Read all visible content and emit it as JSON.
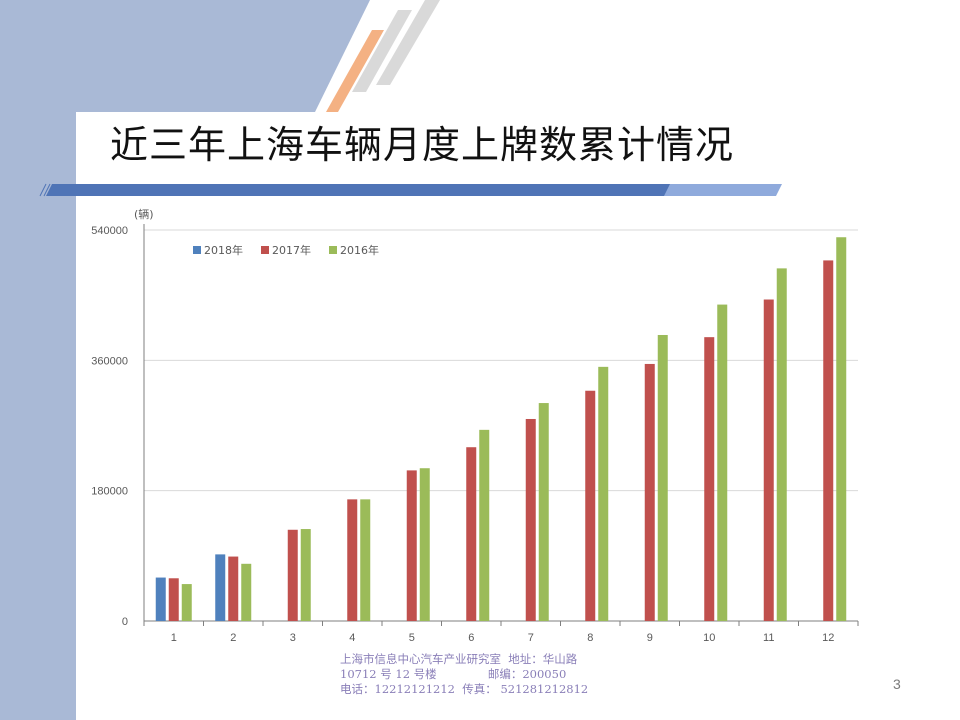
{
  "slide": {
    "title": "近三年上海车辆月度上牌数累计情况",
    "page_number": "3",
    "footer_lines": [
      "上海市信息中心汽车产业研究室  地址：华山路",
      "10712 号 12 号楼              邮编：200050",
      "电话：12212121212  传真： 521281212812"
    ]
  },
  "colors": {
    "band": "#a9b9d6",
    "accent_orange": "#f4b183",
    "stripe_gray": "#d9d9d9",
    "rule_blue": "#4f74b6",
    "rule_light": "#8faadc"
  },
  "chart_data": {
    "type": "bar",
    "unit": "(辆)",
    "categories": [
      "1",
      "2",
      "3",
      "4",
      "5",
      "6",
      "7",
      "8",
      "9",
      "10",
      "11",
      "12"
    ],
    "ylim": [
      0,
      540000
    ],
    "yticks": [
      0,
      180000,
      360000,
      540000
    ],
    "ytick_labels": [
      "0",
      "180000",
      "360000",
      "540000"
    ],
    "grid": true,
    "legend_position": "top-left",
    "series": [
      {
        "name": "2018年",
        "color": "#4f81bd",
        "values": [
          60000,
          92000,
          null,
          null,
          null,
          null,
          null,
          null,
          null,
          null,
          null,
          null
        ]
      },
      {
        "name": "2017年",
        "color": "#c0504d",
        "values": [
          59000,
          89000,
          126000,
          168000,
          208000,
          240000,
          279000,
          318000,
          355000,
          392000,
          444000,
          498000
        ]
      },
      {
        "name": "2016年",
        "color": "#9bbb59",
        "values": [
          51000,
          79000,
          127000,
          168000,
          211000,
          264000,
          301000,
          351000,
          395000,
          437000,
          487000,
          530000
        ]
      }
    ]
  }
}
